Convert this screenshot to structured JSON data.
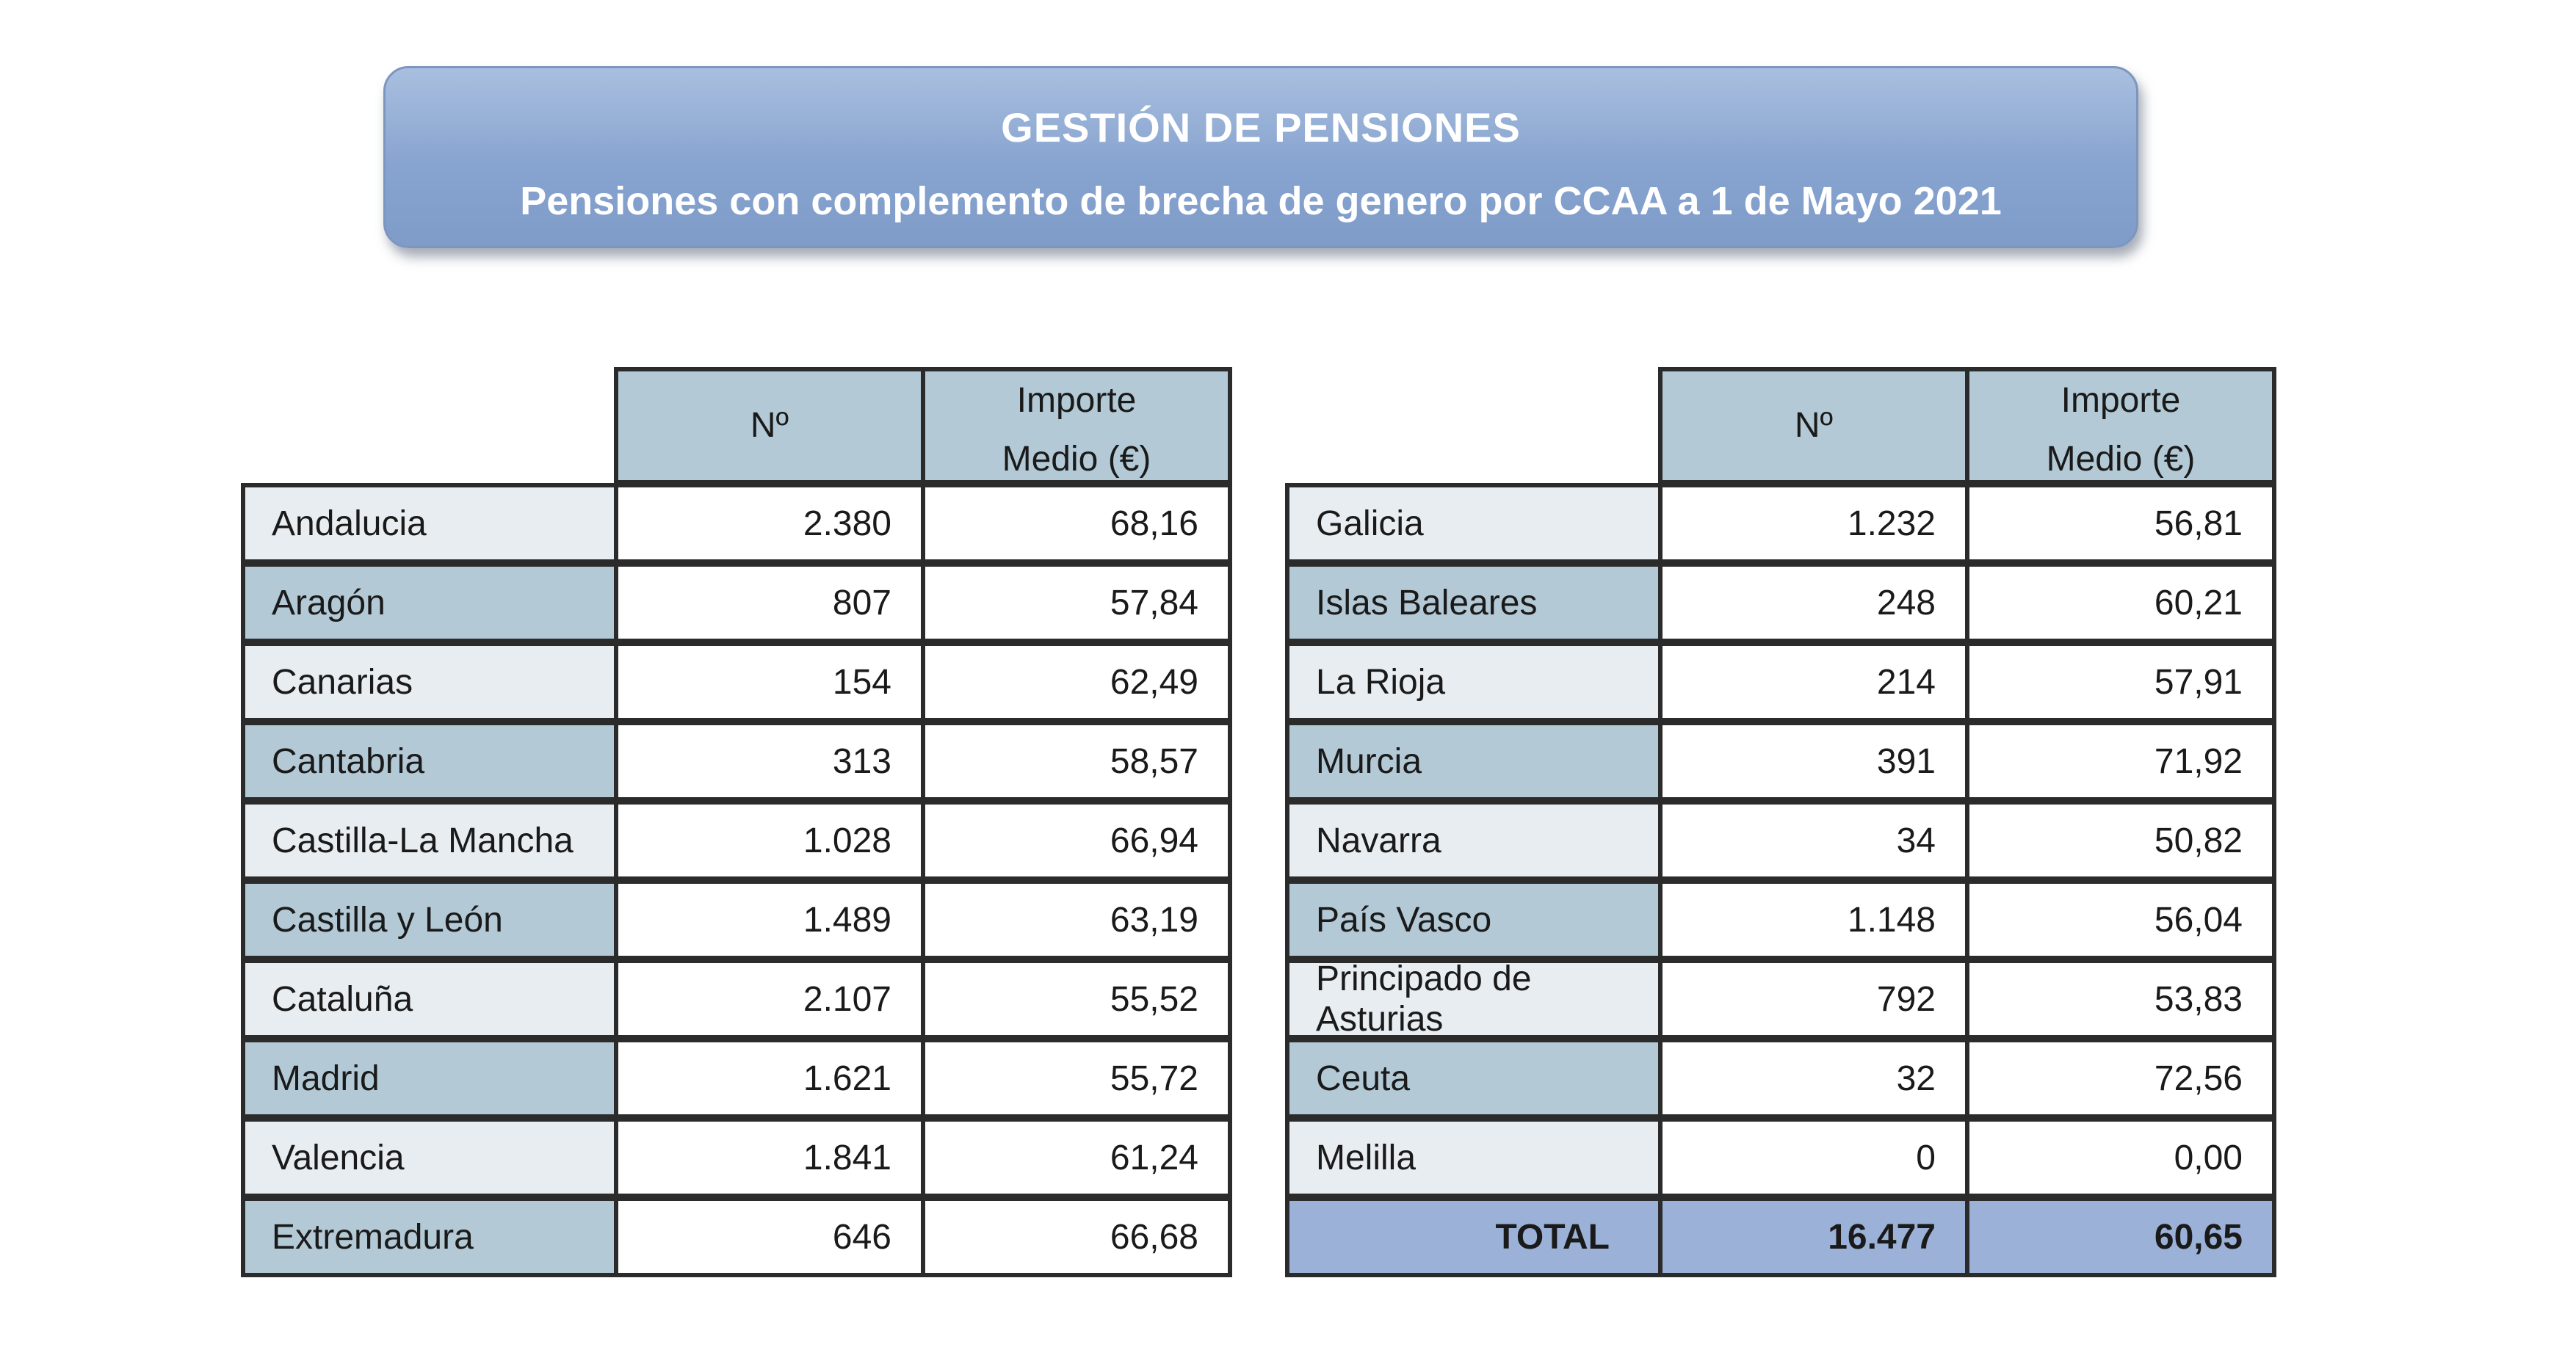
{
  "header": {
    "title": "GESTIÓN DE  PENSIONES",
    "subtitle": "Pensiones con complemento de brecha de genero por CCAA a 1 de Mayo 2021"
  },
  "columns": {
    "n": "Nº",
    "importe_line1": "Importe",
    "importe_line2": "Medio (€)"
  },
  "left_table": [
    {
      "region": "Andalucia",
      "n": "2.380",
      "importe": "68,16"
    },
    {
      "region": "Aragón",
      "n": "807",
      "importe": "57,84"
    },
    {
      "region": "Canarias",
      "n": "154",
      "importe": "62,49"
    },
    {
      "region": "Cantabria",
      "n": "313",
      "importe": "58,57"
    },
    {
      "region": "Castilla-La Mancha",
      "n": "1.028",
      "importe": "66,94"
    },
    {
      "region": "Castilla y León",
      "n": "1.489",
      "importe": "63,19"
    },
    {
      "region": "Cataluña",
      "n": "2.107",
      "importe": "55,52"
    },
    {
      "region": "Madrid",
      "n": "1.621",
      "importe": "55,72"
    },
    {
      "region": "Valencia",
      "n": "1.841",
      "importe": "61,24"
    },
    {
      "region": "Extremadura",
      "n": "646",
      "importe": "66,68"
    }
  ],
  "right_table": [
    {
      "region": "Galicia",
      "n": "1.232",
      "importe": "56,81"
    },
    {
      "region": "Islas Baleares",
      "n": "248",
      "importe": "60,21"
    },
    {
      "region": "La Rioja",
      "n": "214",
      "importe": "57,91"
    },
    {
      "region": "Murcia",
      "n": "391",
      "importe": "71,92"
    },
    {
      "region": "Navarra",
      "n": "34",
      "importe": "50,82"
    },
    {
      "region": "País Vasco",
      "n": "1.148",
      "importe": "56,04"
    },
    {
      "region": "Principado de Asturias",
      "n": "792",
      "importe": "53,83"
    },
    {
      "region": "Ceuta",
      "n": "32",
      "importe": "72,56"
    },
    {
      "region": "Melilla",
      "n": "0",
      "importe": "0,00"
    }
  ],
  "total": {
    "label": "TOTAL",
    "n": "16.477",
    "importe": "60,65"
  },
  "colors": {
    "banner": "#87a3cf",
    "header_cell": "#b3c9d6",
    "row_light": "#e8edf1",
    "total_row": "#9bb1d8"
  }
}
